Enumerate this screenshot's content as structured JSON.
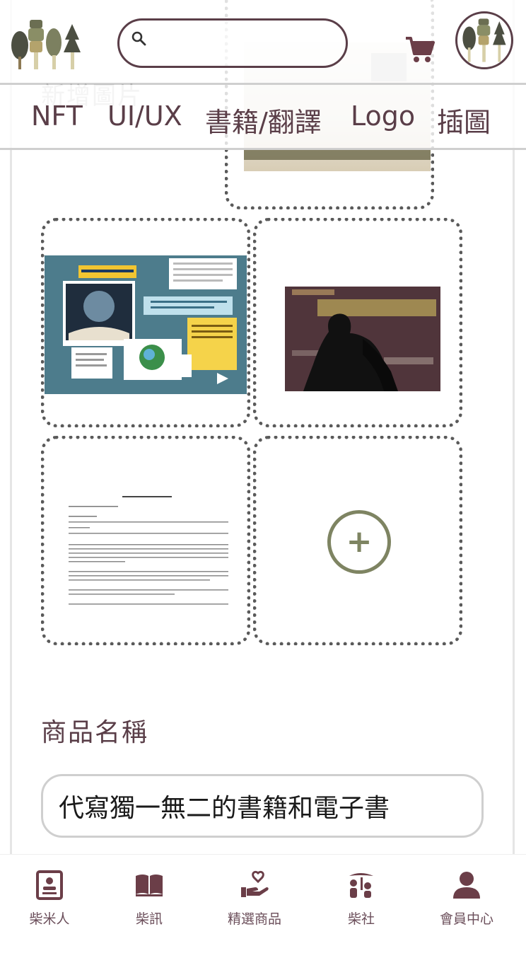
{
  "header": {
    "search": {
      "placeholder": "",
      "value": ""
    }
  },
  "faded_label": "新增圖片",
  "tabs": [
    "NFT",
    "UI/UX",
    "書籍/翻譯",
    "Logo",
    "插圖"
  ],
  "tiles": [
    {
      "kind": "image",
      "content": "poster-collage"
    },
    {
      "kind": "image",
      "content": "dark-silhouette-worthless"
    },
    {
      "kind": "image",
      "content": "text-document"
    },
    {
      "kind": "add",
      "symbol": "+"
    }
  ],
  "product": {
    "label": "商品名稱",
    "value": "代寫獨一無二的書籍和電子書"
  },
  "bottom_nav": [
    {
      "label": "柴米人",
      "icon": "contact-card-icon"
    },
    {
      "label": "柴訊",
      "icon": "book-icon"
    },
    {
      "label": "精選商品",
      "icon": "hand-heart-icon"
    },
    {
      "label": "柴社",
      "icon": "community-icon"
    },
    {
      "label": "會員中心",
      "icon": "user-icon"
    }
  ],
  "colors": {
    "primary": "#5a3e48",
    "accent_green": "#7e8462",
    "border": "#cfcfcf"
  }
}
